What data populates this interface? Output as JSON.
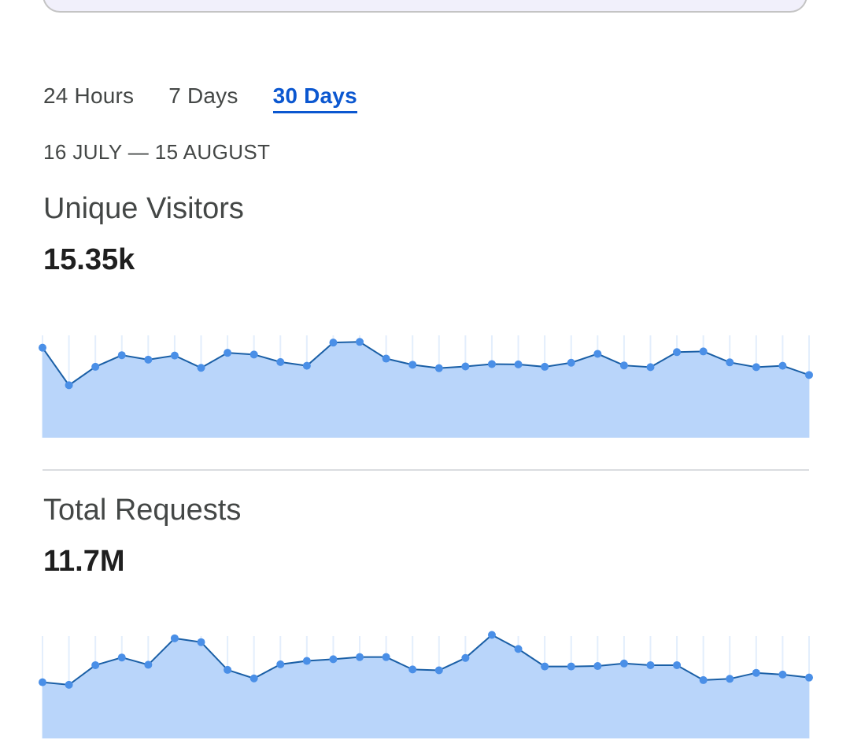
{
  "tabs": [
    {
      "label": "24 Hours",
      "active": false
    },
    {
      "label": "7 Days",
      "active": false
    },
    {
      "label": "30 Days",
      "active": true
    }
  ],
  "date_range": "16 JULY — 15 AUGUST",
  "metrics": [
    {
      "title": "Unique Visitors",
      "value": "15.35k"
    },
    {
      "title": "Total Requests",
      "value": "11.7M"
    }
  ],
  "colors": {
    "accent": "#0b57d0",
    "line": "#1a5fa6",
    "point": "#4a8fe7",
    "area": "#b9d5fa",
    "grid": "#e3eefc"
  },
  "chart_data": [
    {
      "type": "area",
      "title": "Unique Visitors",
      "y": [
        550,
        440,
        494,
        528,
        515,
        527,
        491,
        535,
        530,
        508,
        497,
        565,
        567,
        518,
        500,
        490,
        495,
        502,
        501,
        494,
        506,
        532,
        498,
        493,
        537,
        539,
        507,
        493,
        497,
        470
      ]
    },
    {
      "type": "area",
      "title": "Total Requests",
      "y": [
        297,
        291,
        337,
        355,
        338,
        400,
        391,
        326,
        306,
        339,
        347,
        351,
        356,
        356,
        327,
        325,
        354,
        408,
        375,
        334,
        334,
        335,
        341,
        337,
        337,
        302,
        305,
        319,
        315,
        308
      ]
    }
  ]
}
